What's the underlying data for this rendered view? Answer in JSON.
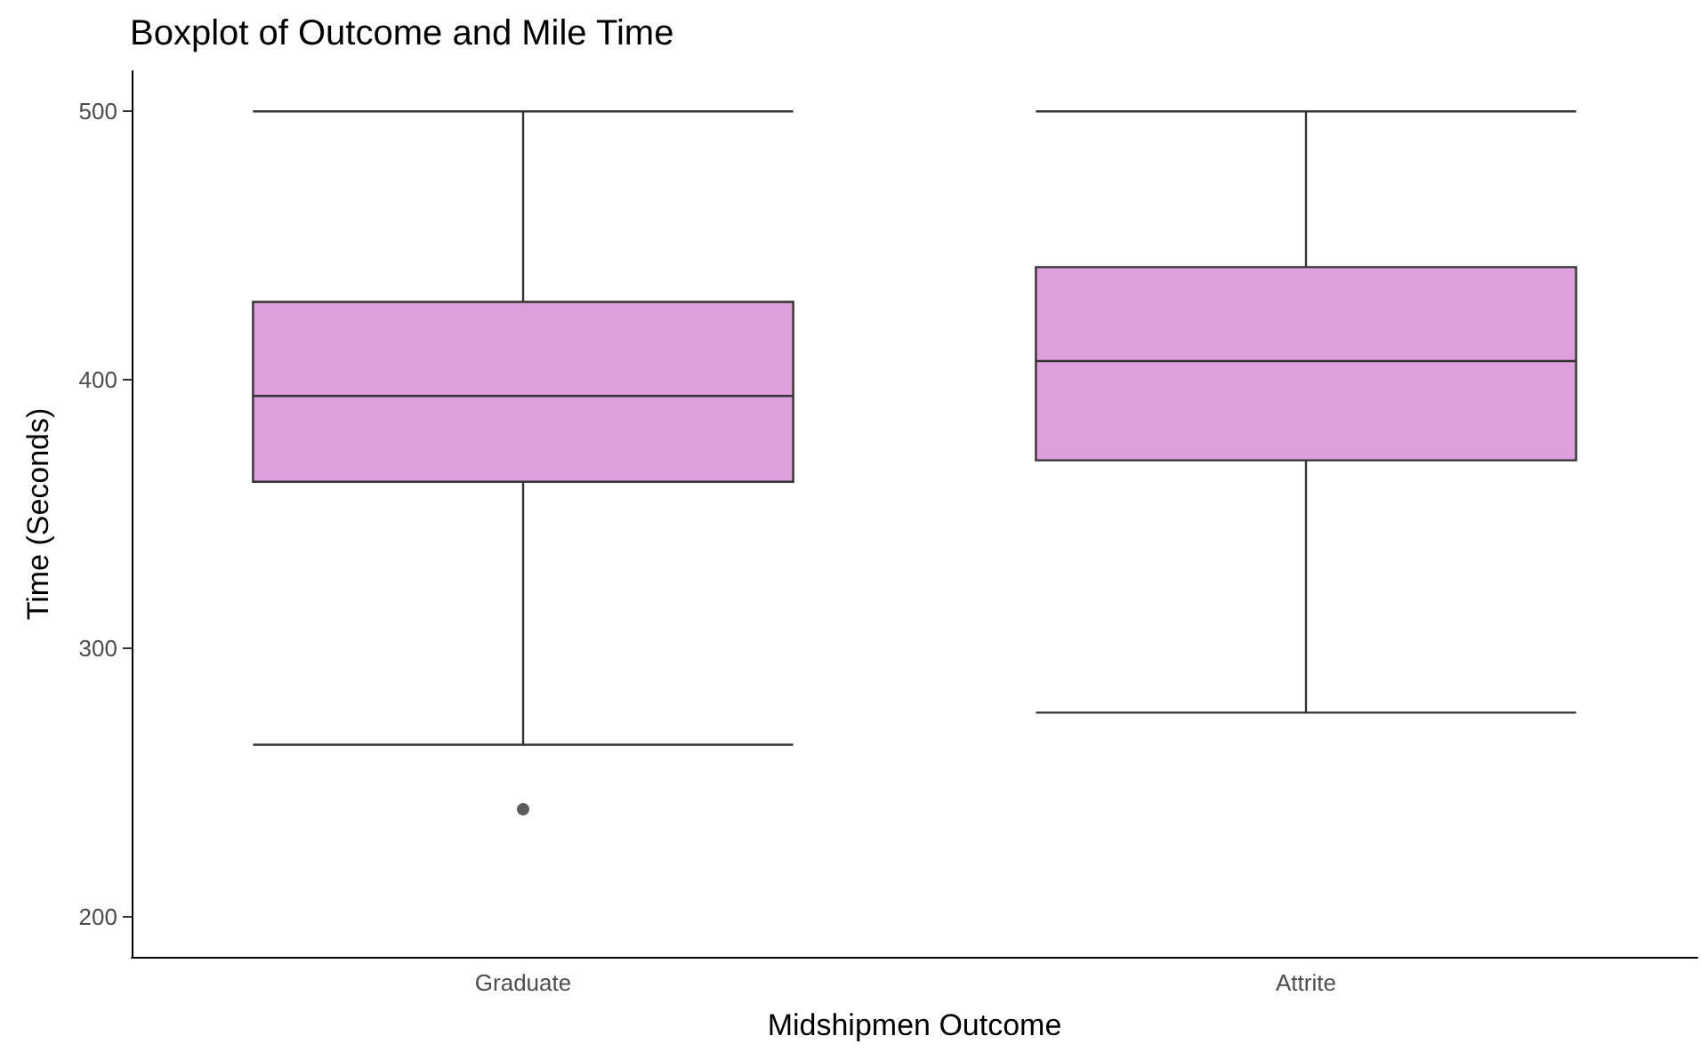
{
  "chart_data": {
    "type": "box",
    "title": "Boxplot of Outcome and Mile Time",
    "xlabel": "Midshipmen Outcome",
    "ylabel": "Time (Seconds)",
    "categories": [
      "Graduate",
      "Attrite"
    ],
    "color": "#dda0dd",
    "boxes": [
      {
        "low": 264,
        "q1": 362,
        "median": 394,
        "q3": 429,
        "high": 500,
        "outliers": [
          240
        ]
      },
      {
        "low": 276,
        "q1": 370,
        "median": 407,
        "q3": 442,
        "high": 500
      }
    ],
    "ylim": [
      185,
      515
    ],
    "yticks": [
      200,
      300,
      400,
      500
    ],
    "grid": false
  }
}
